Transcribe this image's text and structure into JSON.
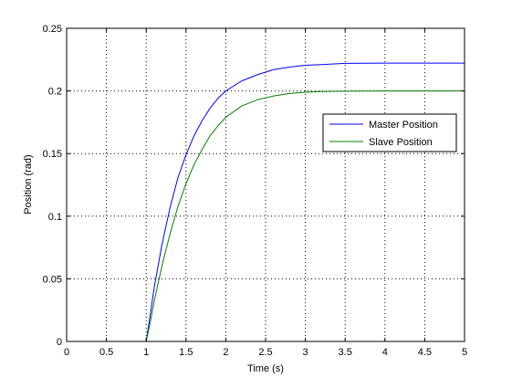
{
  "chart_data": {
    "type": "line",
    "title": "",
    "xlabel": "Time (s)",
    "ylabel": "Position (rad)",
    "xlim": [
      0,
      5
    ],
    "ylim": [
      0,
      0.25
    ],
    "xticks": [
      0,
      0.5,
      1,
      1.5,
      2,
      2.5,
      3,
      3.5,
      4,
      4.5,
      5
    ],
    "xtick_labels": [
      "0",
      "0.5",
      "1",
      "1.5",
      "2",
      "2.5",
      "3",
      "3.5",
      "4",
      "4.5",
      "5"
    ],
    "yticks": [
      0,
      0.05,
      0.1,
      0.15,
      0.2,
      0.25
    ],
    "ytick_labels": [
      "0",
      "0.05",
      "0.1",
      "0.15",
      "0.2",
      "0.25"
    ],
    "grid": true,
    "legend_position": "right-middle",
    "series": [
      {
        "name": "Master Position",
        "color": "#0000ff",
        "x": [
          1,
          1.05,
          1.1,
          1.2,
          1.3,
          1.4,
          1.5,
          1.6,
          1.7,
          1.8,
          1.9,
          2.0,
          2.2,
          2.4,
          2.6,
          2.8,
          3.0,
          3.2,
          3.5,
          4.0,
          4.5,
          5.0
        ],
        "y": [
          0,
          0.021,
          0.043,
          0.078,
          0.107,
          0.131,
          0.149,
          0.164,
          0.176,
          0.186,
          0.194,
          0.2,
          0.208,
          0.213,
          0.217,
          0.219,
          0.2205,
          0.221,
          0.222,
          0.2222,
          0.2222,
          0.2222
        ]
      },
      {
        "name": "Slave Position",
        "color": "#008000",
        "x": [
          1,
          1.05,
          1.1,
          1.2,
          1.3,
          1.4,
          1.5,
          1.6,
          1.7,
          1.8,
          1.9,
          2.0,
          2.2,
          2.4,
          2.6,
          2.8,
          3.0,
          3.2,
          3.5,
          4.0,
          4.5,
          5.0
        ],
        "y": [
          0,
          0.015,
          0.032,
          0.061,
          0.086,
          0.108,
          0.126,
          0.141,
          0.153,
          0.164,
          0.172,
          0.179,
          0.188,
          0.193,
          0.196,
          0.198,
          0.199,
          0.1995,
          0.1998,
          0.2,
          0.2,
          0.2
        ]
      }
    ]
  }
}
